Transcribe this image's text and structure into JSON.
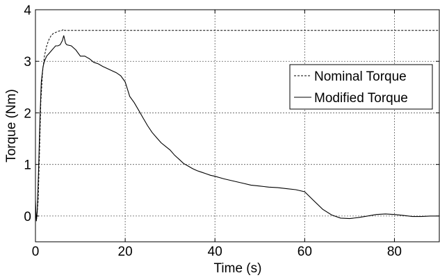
{
  "chart_data": {
    "type": "line",
    "title": "",
    "xlabel": "Time (s)",
    "ylabel": "Torque (Nm)",
    "xlim": [
      0,
      90
    ],
    "ylim": [
      -0.5,
      4
    ],
    "xticks": [
      0,
      20,
      40,
      60,
      80
    ],
    "yticks": [
      0,
      1,
      2,
      3,
      4
    ],
    "grid": true,
    "legend_position": "right",
    "series": [
      {
        "name": "Nominal Torque",
        "style": "dashed",
        "color": "#000000",
        "x": [
          0,
          0.3,
          0.6,
          0.9,
          1.2,
          1.6,
          2.0,
          2.5,
          3.0,
          3.5,
          4.0,
          4.5,
          5.0,
          5.5,
          6.0,
          6.2,
          6.5,
          7,
          10,
          20,
          30,
          40,
          50,
          60,
          70,
          80,
          90
        ],
        "y": [
          0.05,
          -0.05,
          0.3,
          1.2,
          2.2,
          2.8,
          3.1,
          3.3,
          3.42,
          3.5,
          3.54,
          3.56,
          3.58,
          3.59,
          3.6,
          3.62,
          3.6,
          3.6,
          3.6,
          3.6,
          3.6,
          3.6,
          3.6,
          3.6,
          3.6,
          3.6,
          3.6
        ]
      },
      {
        "name": "Modified Torque",
        "style": "solid",
        "color": "#000000",
        "x": [
          0,
          0.2,
          0.4,
          0.7,
          1.0,
          1.3,
          1.7,
          2.0,
          2.5,
          3.0,
          3.5,
          4.0,
          4.5,
          5.0,
          5.5,
          6.0,
          6.3,
          6.7,
          7,
          8,
          9,
          10,
          11,
          12,
          13,
          14,
          15,
          16,
          17,
          18,
          19,
          20,
          21,
          22,
          23,
          24,
          25,
          26,
          27,
          28,
          29,
          30,
          31,
          32,
          33,
          34,
          35,
          36,
          37,
          38,
          39,
          40,
          42,
          44,
          46,
          48,
          50,
          52,
          54,
          56,
          58,
          60,
          62,
          64,
          66,
          68,
          70,
          72,
          74,
          76,
          78,
          80,
          82,
          84,
          86,
          88,
          90
        ],
        "y": [
          0.3,
          -0.1,
          0.1,
          0.9,
          1.9,
          2.6,
          2.9,
          3.0,
          3.1,
          3.15,
          3.2,
          3.25,
          3.3,
          3.3,
          3.32,
          3.4,
          3.5,
          3.35,
          3.32,
          3.3,
          3.22,
          3.1,
          3.1,
          3.05,
          2.98,
          2.95,
          2.9,
          2.86,
          2.82,
          2.78,
          2.72,
          2.6,
          2.32,
          2.2,
          2.05,
          1.9,
          1.75,
          1.62,
          1.52,
          1.42,
          1.35,
          1.28,
          1.18,
          1.1,
          1.02,
          0.97,
          0.92,
          0.88,
          0.85,
          0.82,
          0.79,
          0.77,
          0.72,
          0.68,
          0.64,
          0.6,
          0.58,
          0.56,
          0.55,
          0.53,
          0.51,
          0.47,
          0.3,
          0.13,
          0.02,
          -0.04,
          -0.05,
          -0.03,
          0.0,
          0.03,
          0.04,
          0.03,
          0.01,
          -0.01,
          -0.01,
          0.0,
          0.0
        ]
      }
    ]
  },
  "legend": {
    "entries": [
      "Nominal Torque",
      "Modified Torque"
    ]
  }
}
